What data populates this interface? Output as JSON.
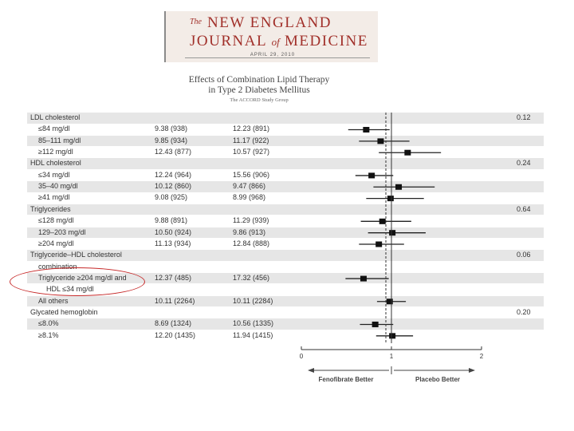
{
  "masthead": {
    "the": "The",
    "line1": "NEW ENGLAND",
    "journal": "JOURNAL",
    "of": "of",
    "medicine": "MEDICINE",
    "date": "APRIL 29, 2010"
  },
  "figure": {
    "title_line1": "Effects of Combination Lipid Therapy",
    "title_line2": "in Type 2 Diabetes Mellitus",
    "subtitle": "The ACCORD Study Group"
  },
  "rows": [
    {
      "label": "LDL cholesterol",
      "type": "group",
      "p": "0.12"
    },
    {
      "label": "≤84 mg/dl",
      "type": "sub",
      "fen": "9.38 (938)",
      "plc": "12.23 (891)",
      "est": 0.72,
      "lo": 0.52,
      "hi": 0.98
    },
    {
      "label": "85–111 mg/dl",
      "type": "sub",
      "fen": "9.85 (934)",
      "plc": "11.17 (922)",
      "est": 0.88,
      "lo": 0.64,
      "hi": 1.2
    },
    {
      "label": "≥112 mg/dl",
      "type": "sub",
      "fen": "12.43 (877)",
      "plc": "10.57 (927)",
      "est": 1.18,
      "lo": 0.86,
      "hi": 1.55
    },
    {
      "label": "HDL cholesterol",
      "type": "group",
      "p": "0.24"
    },
    {
      "label": "≤34 mg/dl",
      "type": "sub",
      "fen": "12.24 (964)",
      "plc": "15.56 (906)",
      "est": 0.78,
      "lo": 0.6,
      "hi": 1.02
    },
    {
      "label": "35–40 mg/dl",
      "type": "sub",
      "fen": "10.12 (860)",
      "plc": "9.47 (866)",
      "est": 1.08,
      "lo": 0.8,
      "hi": 1.48
    },
    {
      "label": "≥41 mg/dl",
      "type": "sub",
      "fen": "9.08 (925)",
      "plc": "8.99 (968)",
      "est": 0.99,
      "lo": 0.72,
      "hi": 1.36
    },
    {
      "label": "Triglycerides",
      "type": "group",
      "p": "0.64"
    },
    {
      "label": "≤128 mg/dl",
      "type": "sub",
      "fen": "9.88 (891)",
      "plc": "11.29 (939)",
      "est": 0.9,
      "lo": 0.66,
      "hi": 1.22
    },
    {
      "label": "129–203 mg/dl",
      "type": "sub",
      "fen": "10.50 (924)",
      "plc": "9.86 (913)",
      "est": 1.01,
      "lo": 0.74,
      "hi": 1.38
    },
    {
      "label": "≥204 mg/dl",
      "type": "sub",
      "fen": "11.13 (934)",
      "plc": "12.84 (888)",
      "est": 0.86,
      "lo": 0.64,
      "hi": 1.14
    },
    {
      "label": "Triglyceride–HDL cholesterol",
      "type": "group",
      "p": "0.06"
    },
    {
      "label": "combination",
      "type": "sub"
    },
    {
      "label": "Triglyceride ≥204 mg/dl and",
      "type": "sub",
      "fen": "12.37 (485)",
      "plc": "17.32 (456)",
      "est": 0.69,
      "lo": 0.49,
      "hi": 0.97
    },
    {
      "label": "HDL ≤34 mg/dl",
      "type": "sub2"
    },
    {
      "label": "All others",
      "type": "sub",
      "fen": "10.11 (2264)",
      "plc": "10.11 (2284)",
      "est": 0.98,
      "lo": 0.84,
      "hi": 1.16
    },
    {
      "label": "Glycated hemoglobin",
      "type": "group",
      "p": "0.20"
    },
    {
      "label": "≤8.0%",
      "type": "sub",
      "fen": "8.69 (1324)",
      "plc": "10.56 (1335)",
      "est": 0.82,
      "lo": 0.65,
      "hi": 1.02
    },
    {
      "label": "≥8.1%",
      "type": "sub",
      "fen": "12.20 (1435)",
      "plc": "11.94 (1415)",
      "est": 1.01,
      "lo": 0.83,
      "hi": 1.24
    }
  ],
  "axis": {
    "ticks": [
      "0",
      "1",
      "2"
    ],
    "left_label": "Fenofibrate Better",
    "right_label": "Placebo Better"
  }
}
